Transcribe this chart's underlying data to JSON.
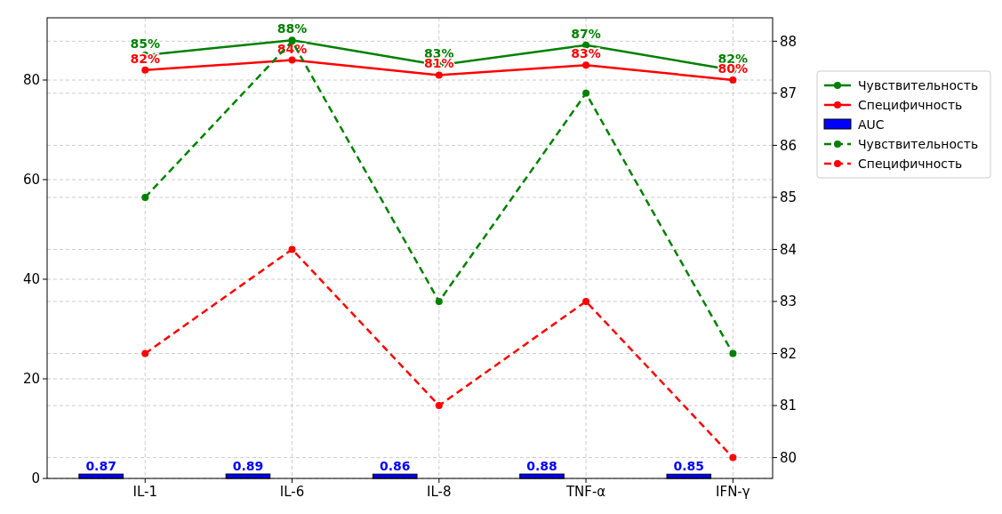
{
  "chart_data": {
    "type": "line",
    "categories": [
      "IL-1",
      "IL-6",
      "IL-8",
      "TNF-α",
      "IFN-γ"
    ],
    "ylim": [
      0,
      92.5
    ],
    "yticks": [
      0,
      20,
      40,
      60,
      80
    ],
    "y2lim": [
      79.6,
      88.45
    ],
    "y2ticks": [
      80,
      81,
      82,
      83,
      84,
      85,
      86,
      87,
      88
    ],
    "grid": true,
    "legend": "right",
    "marker": "circle",
    "series": [
      {
        "name": "Чувствительность",
        "color": "#008000",
        "line_style": "solid",
        "values": [
          85,
          88,
          83,
          87,
          82
        ],
        "value_labels": [
          "85%",
          "88%",
          "83%",
          "87%",
          "82%"
        ]
      },
      {
        "name": "Специфичность",
        "color": "#ff0000",
        "line_style": "solid",
        "values": [
          82,
          84,
          81,
          83,
          80
        ],
        "value_labels": [
          "82%",
          "84%",
          "81%",
          "83%",
          "80%"
        ]
      },
      {
        "name": "AUC",
        "type": "bar",
        "color": "#0000ff",
        "values": [
          0.87,
          0.89,
          0.86,
          0.88,
          0.85
        ],
        "value_labels": [
          "0.87",
          "0.89",
          "0.86",
          "0.88",
          "0.85"
        ]
      },
      {
        "name": "Чувствительность",
        "axis": "y2",
        "color": "#008000",
        "line_style": "dashed",
        "values": [
          85,
          88,
          83,
          87,
          82
        ]
      },
      {
        "name": "Специфичность",
        "axis": "y2",
        "color": "#ff0000",
        "line_style": "dashed",
        "values": [
          82,
          84,
          81,
          83,
          80
        ]
      }
    ]
  }
}
